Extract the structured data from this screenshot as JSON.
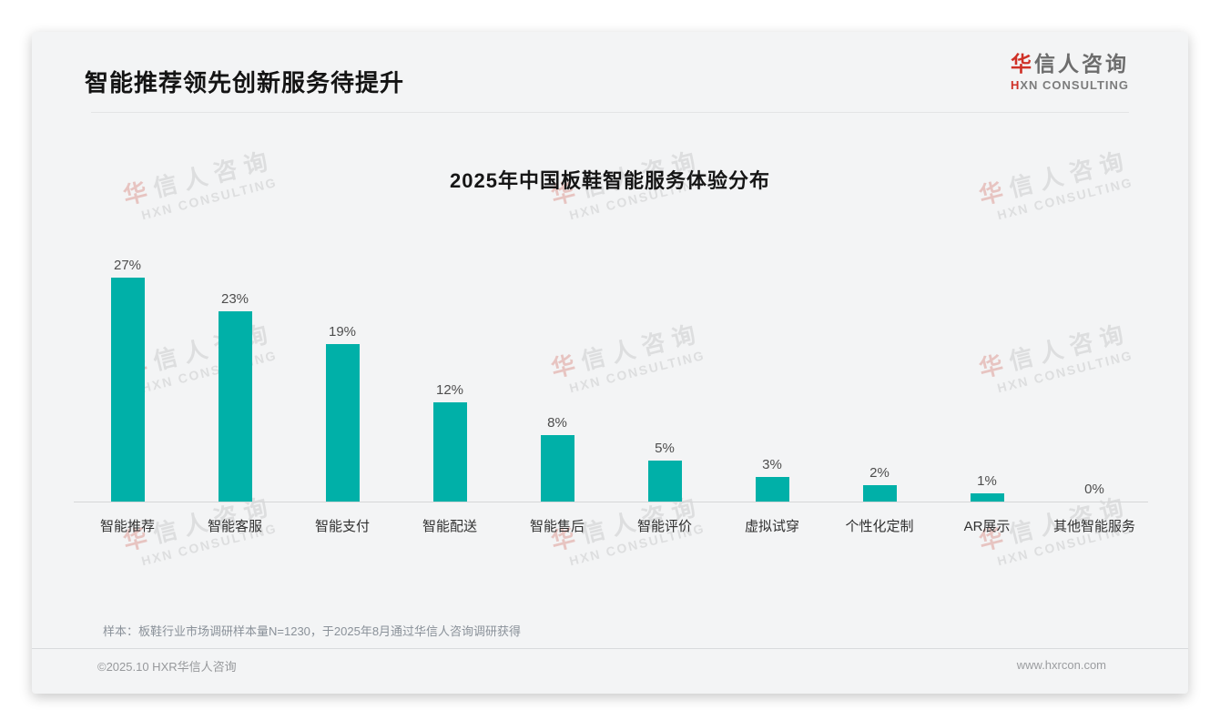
{
  "page": {
    "header_title": "智能推荐领先创新服务待提升",
    "logo": {
      "cn_first": "华",
      "cn_rest": "信人咨询",
      "en_first": "H",
      "en_rest": "XN CONSULTING"
    },
    "note": "样本：板鞋行业市场调研样本量N=1230，于2025年8月通过华信人咨询调研获得",
    "footer": {
      "left": "©2025.10 HXR华信人咨询",
      "right": "www.hxrcon.com"
    }
  },
  "watermark": {
    "line1_first": "华",
    "line1_rest": "信人咨询",
    "line2": "HXN CONSULTING"
  },
  "colors": {
    "bar": "#00b0a8",
    "brand_red": "#cf3127",
    "card_bg": "#f3f4f5"
  },
  "chart_data": {
    "type": "bar",
    "title": "2025年中国板鞋智能服务体验分布",
    "categories": [
      "智能推荐",
      "智能客服",
      "智能支付",
      "智能配送",
      "智能售后",
      "智能评价",
      "虚拟试穿",
      "个性化定制",
      "AR展示",
      "其他智能服务"
    ],
    "values": [
      27,
      23,
      19,
      12,
      8,
      5,
      3,
      2,
      1,
      0
    ],
    "value_labels": [
      "27%",
      "23%",
      "19%",
      "12%",
      "8%",
      "5%",
      "3%",
      "2%",
      "1%",
      "0%"
    ],
    "xlabel": "",
    "ylabel": "",
    "ylim": [
      0,
      28.5
    ],
    "grid": false,
    "legend": null,
    "value_label_format": "{value}%"
  }
}
